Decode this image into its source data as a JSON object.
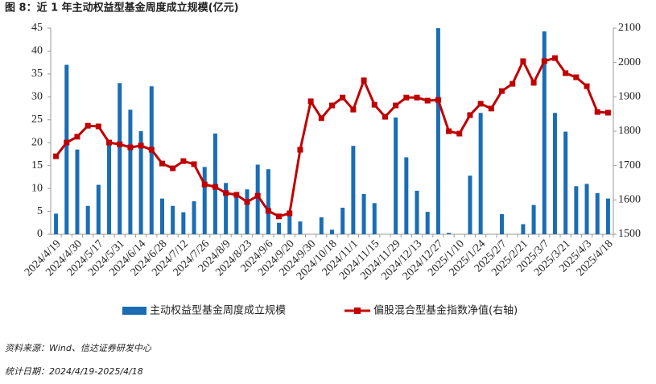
{
  "chart_data": {
    "type": "bar_line",
    "title": "图 8：近 1 年主动权益型基金周度成立规模(亿元)",
    "categories": [
      "2024/4/19",
      null,
      "2024/4/30",
      null,
      "2024/5/17",
      null,
      "2024/5/31",
      null,
      "2024/6/14",
      null,
      "2024/6/28",
      null,
      "2024/7/12",
      null,
      "2024/7/26",
      null,
      "2024/8/9",
      null,
      "2024/8/23",
      null,
      "2024/9/6",
      null,
      "2024/9/20",
      null,
      "2024/9/30",
      null,
      "2024/10/18",
      null,
      "2024/11/1",
      null,
      "2024/11/15",
      null,
      "2024/11/29",
      null,
      "2024/12/13",
      null,
      "2024/12/27",
      null,
      "2025/1/10",
      null,
      "2025/1/24",
      null,
      "2025/2/7",
      null,
      "2025/2/21",
      null,
      "2025/3/7",
      null,
      "2025/3/21",
      null,
      "2025/4/3",
      null,
      "2025/4/18"
    ],
    "series": [
      {
        "name": "主动权益型基金周度成立规模",
        "color": "#1a6db5",
        "axis": "y",
        "values": [
          4.5,
          37,
          18.5,
          6.2,
          10.8,
          20.5,
          33,
          27.2,
          22.5,
          32.3,
          7.8,
          6.2,
          4.8,
          7.2,
          14.7,
          22,
          11.2,
          8.5,
          9.8,
          15.2,
          14.2,
          2.5,
          4.5,
          2.8,
          0,
          3.7,
          1.0,
          5.8,
          19.3,
          8.8,
          6.8,
          0,
          25.5,
          16.8,
          9.5,
          4.9,
          45,
          0.3,
          0,
          12.8,
          26.5,
          0,
          4.4,
          0,
          2.2,
          6.4,
          44.3,
          26.5,
          22.4,
          10.5,
          11,
          9,
          7.8
        ]
      },
      {
        "name": "偏股混合型基金指数净值(右轴)",
        "color": "#c00000",
        "axis": "y2",
        "values": [
          1727,
          1767,
          1784,
          1816,
          1814,
          1767,
          1762,
          1753,
          1758,
          1746,
          1706,
          1692,
          1713,
          1704,
          1645,
          1638,
          1620,
          1615,
          1594,
          1612,
          1568,
          1552,
          1561,
          1746,
          1887,
          1838,
          1875,
          1898,
          1863,
          1948,
          1877,
          1842,
          1875,
          1898,
          1898,
          1889,
          1891,
          1800,
          1793,
          1847,
          1880,
          1866,
          1917,
          1938,
          2004,
          1941,
          2004,
          2013,
          1969,
          1957,
          1931,
          1856,
          1854
        ]
      }
    ],
    "ylim": [
      0,
      45
    ],
    "yticks": [
      0,
      5,
      10,
      15,
      20,
      25,
      30,
      35,
      40,
      45
    ],
    "y2lim": [
      1500,
      2100
    ],
    "y2ticks": [
      1500,
      1600,
      1700,
      1800,
      1900,
      2000,
      2100
    ],
    "legend": "bottom"
  },
  "notes": [
    "资料来源：Wind、信达证券研发中心",
    "统计日期：2024/4/19-2025/4/18"
  ]
}
